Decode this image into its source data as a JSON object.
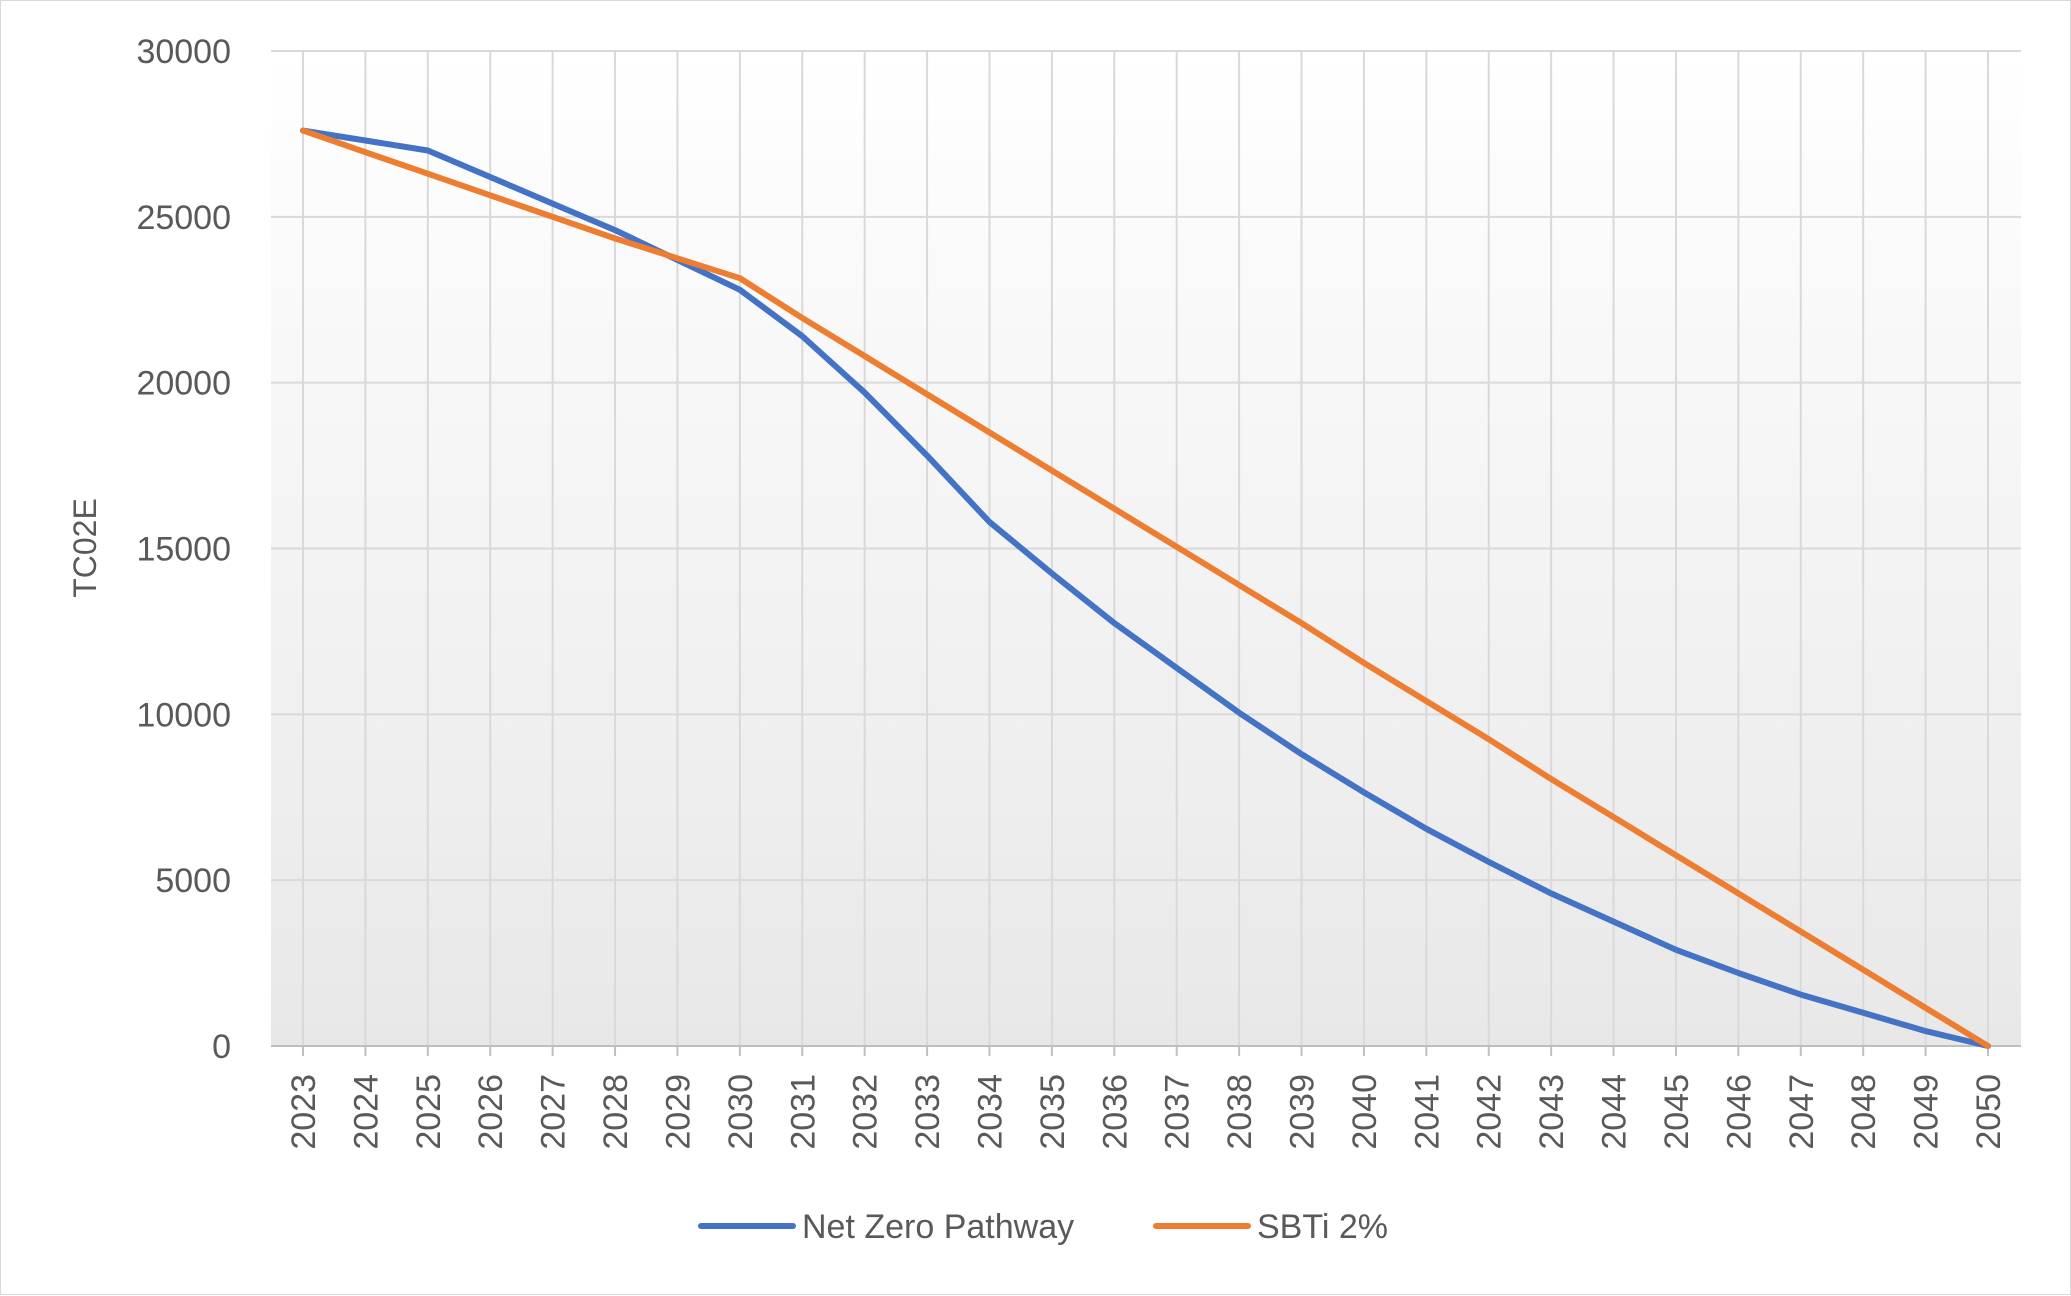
{
  "chart_data": {
    "type": "line",
    "ylabel": "TC02E",
    "ylim": [
      0,
      30000
    ],
    "yticks": [
      0,
      5000,
      10000,
      15000,
      20000,
      25000,
      30000
    ],
    "grid": true,
    "legend_position": "bottom",
    "categories": [
      "2023",
      "2024",
      "2025",
      "2026",
      "2027",
      "2028",
      "2029",
      "2030",
      "2031",
      "2032",
      "2033",
      "2034",
      "2035",
      "2036",
      "2037",
      "2038",
      "2039",
      "2040",
      "2041",
      "2042",
      "2043",
      "2044",
      "2045",
      "2046",
      "2047",
      "2048",
      "2049",
      "2050"
    ],
    "series": [
      {
        "name": "Net Zero Pathway",
        "color": "#4472c4",
        "values": [
          27600,
          27300,
          27000,
          26200,
          25400,
          24600,
          23700,
          22800,
          21400,
          19700,
          17800,
          15800,
          14250,
          12750,
          11400,
          10050,
          8800,
          7650,
          6550,
          5550,
          4600,
          3750,
          2900,
          2200,
          1550,
          1000,
          450,
          0
        ]
      },
      {
        "name": "SBTi 2%",
        "color": "#ed7d31",
        "values": [
          27600,
          26950,
          26300,
          25650,
          25000,
          24350,
          23750,
          23150,
          21950,
          20800,
          19650,
          18500,
          17350,
          16200,
          15050,
          13900,
          12750,
          11550,
          10400,
          9250,
          8050,
          6900,
          5750,
          4600,
          3450,
          2300,
          1150,
          0
        ]
      }
    ]
  }
}
